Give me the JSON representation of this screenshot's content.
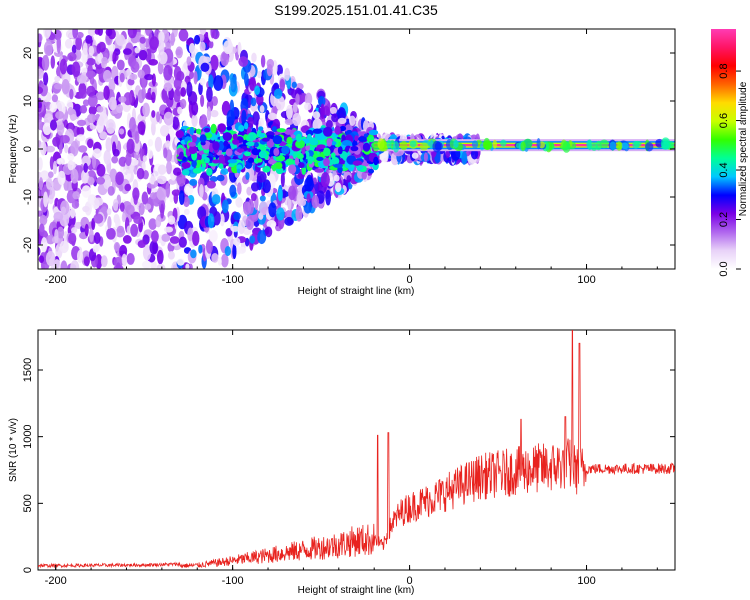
{
  "title": "S199.2025.151.01.41.C35",
  "chart_data": [
    {
      "type": "heatmap",
      "xlabel": "Height of straight line (km)",
      "ylabel": "Frequency (Hz)",
      "xlim": [
        -210,
        150
      ],
      "ylim": [
        -25,
        25
      ],
      "xticks": [
        -200,
        -100,
        0,
        100
      ],
      "yticks": [
        -20,
        -10,
        0,
        10,
        20
      ],
      "colorbar": {
        "label": "Normalized spectral amplitude",
        "ticks": [
          0.0,
          0.2,
          0.4,
          0.6,
          0.8
        ],
        "range": [
          0,
          0.97
        ],
        "colors": [
          "#ffffff",
          "#e8d2f8",
          "#b066ee",
          "#7a00e6",
          "#0000ff",
          "#00c8ff",
          "#00ff96",
          "#32ff00",
          "#c8ff00",
          "#ffdc00",
          "#ff6400",
          "#ff0000",
          "#ff1464",
          "#ff3cb4"
        ]
      },
      "signal_band": {
        "x_start": -20,
        "x_end": 150,
        "frequency": 0.8
      }
    },
    {
      "type": "line",
      "xlabel": "Height of straight line (km)",
      "ylabel": "SNR (10 * v/v)",
      "xlim": [
        -210,
        150
      ],
      "ylim": [
        0,
        1800
      ],
      "xticks": [
        -200,
        -100,
        0,
        100
      ],
      "yticks": [
        0,
        500,
        1000,
        1500
      ],
      "line_color": "#e8231f",
      "envelope": {
        "x": [
          -210,
          -150,
          -120,
          -100,
          -80,
          -60,
          -40,
          -30,
          -20,
          -15,
          -10,
          -5,
          0,
          10,
          20,
          30,
          40,
          50,
          60,
          70,
          80,
          90,
          95,
          100,
          120,
          150
        ],
        "y": [
          20,
          25,
          35,
          70,
          110,
          150,
          190,
          220,
          230,
          180,
          350,
          430,
          470,
          520,
          580,
          640,
          700,
          720,
          740,
          760,
          770,
          800,
          740,
          760,
          760,
          760
        ]
      },
      "spikes": [
        {
          "x": -18,
          "y": 1010
        },
        {
          "x": -12,
          "y": 1030
        },
        {
          "x": 63,
          "y": 1130
        },
        {
          "x": 88,
          "y": 1150
        },
        {
          "x": 92,
          "y": 1800
        },
        {
          "x": 96,
          "y": 1700
        }
      ]
    }
  ]
}
